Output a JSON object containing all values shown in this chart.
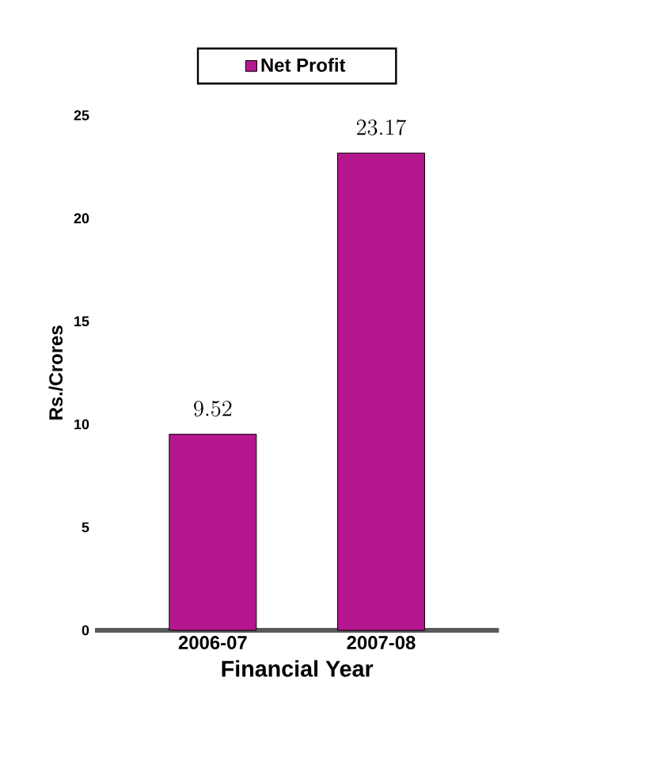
{
  "chart_data": {
    "type": "bar",
    "categories": [
      "2006-07",
      "2007-08"
    ],
    "series": [
      {
        "name": "Net Profit",
        "color": "#b5178f",
        "values": [
          9.52,
          23.17
        ]
      }
    ],
    "xlabel": "Financial Year",
    "ylabel": "Rs./Crores",
    "ylim": [
      0,
      25
    ],
    "yticks": [
      0,
      5,
      10,
      15,
      20,
      25
    ],
    "data_labels": true,
    "legend": "top",
    "grid": false
  }
}
